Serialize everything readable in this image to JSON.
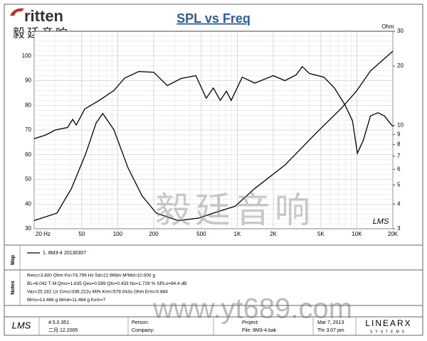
{
  "header": {
    "logo": "ritten",
    "logo_cn": "毅廷音响"
  },
  "chart_data": {
    "type": "line",
    "title": "SPL vs Freq",
    "y2label": "Ohm",
    "xscale": "log",
    "y2scale": "log",
    "grid": true,
    "xlim": [
      20,
      20000
    ],
    "ylim": [
      30,
      110
    ],
    "y2lim": [
      3,
      30
    ],
    "xticks": [
      {
        "value": 20,
        "label": "20 Hz"
      },
      50,
      100,
      200,
      500,
      {
        "value": 1000,
        "label": "1K"
      },
      {
        "value": 2000,
        "label": "2K"
      },
      {
        "value": 5000,
        "label": "5K"
      },
      {
        "value": 10000,
        "label": "10K"
      },
      {
        "value": 20000,
        "label": "20K"
      }
    ],
    "yticks": [
      30,
      40,
      50,
      60,
      70,
      80,
      90,
      100
    ],
    "y2ticks": [
      3,
      4,
      5,
      6,
      7,
      8,
      9,
      10,
      20,
      30
    ],
    "series": [
      {
        "color": "#000000",
        "axis": "y",
        "x": [
          20,
          25,
          30,
          38,
          42,
          45,
          53,
          70,
          93,
          114,
          150,
          200,
          260,
          340,
          450,
          550,
          630,
          720,
          810,
          890,
          1100,
          1400,
          2000,
          2500,
          3100,
          3500,
          4000,
          5300,
          6500,
          8000,
          9200,
          10100,
          11300,
          13000,
          15000,
          17000,
          20000
        ],
        "values": [
          66.5,
          68,
          70,
          71,
          74.3,
          72,
          78.5,
          82,
          86,
          91,
          93.7,
          93.4,
          88,
          90.9,
          92,
          82.9,
          87,
          82,
          85.7,
          82,
          91.4,
          89,
          92,
          90,
          92.3,
          95.7,
          92.9,
          91.4,
          87,
          80,
          73.7,
          60.6,
          65.7,
          75.7,
          77,
          75.7,
          71.4
        ]
      },
      {
        "color": "#000000",
        "axis": "y2",
        "x": [
          20,
          31,
          41,
          54,
          66,
          75,
          93,
          122,
          160,
          210,
          320,
          480,
          630,
          960,
          1400,
          2500,
          4600,
          7400,
          9900,
          13000,
          20000
        ],
        "values": [
          3.3,
          3.6,
          4.8,
          7.2,
          10.3,
          11.5,
          9.5,
          6.1,
          4.4,
          3.6,
          3.3,
          3.4,
          3.6,
          3.9,
          4.8,
          6.3,
          9.2,
          12.2,
          14.9,
          18.9,
          23.8
        ]
      }
    ]
  },
  "map": {
    "label": "Map",
    "legend": "1. 8M3-4",
    "date": "20130307"
  },
  "notes": {
    "label": "Notes",
    "lines": [
      "Revc=3.400 Ohm  Fo=74.799 Hz  Sd=22.966m M²Md=10.000 g",
      "BL=6.042 T·M  Qms=1.635  Qes=0.589  Qts=0.433  No=1.729 %  SPLo=94.4 dB",
      "Vas=25.182 Ltr  Cms=336.222u M/N  Krm=578.043u Ohm  Erm=0.884",
      "Mms=13.466 g  Mmd=11.464 g  Kxm=7"
    ]
  },
  "footer": {
    "logo": "LMS",
    "version": "4.5.0.351",
    "build": "二月.12.2005",
    "person": "Person:",
    "company": "Company:",
    "project": "Project:",
    "file": "File: 8M3-4.bak",
    "date": "Mar  7, 2013",
    "time": "Thr  3:07 pm",
    "brand": "LINEARX",
    "brand_sub": "SYSTEMS"
  },
  "plot_logo": "LMS",
  "watermark": {
    "cn": "毅廷音响",
    "url": "www.yt689.com"
  }
}
